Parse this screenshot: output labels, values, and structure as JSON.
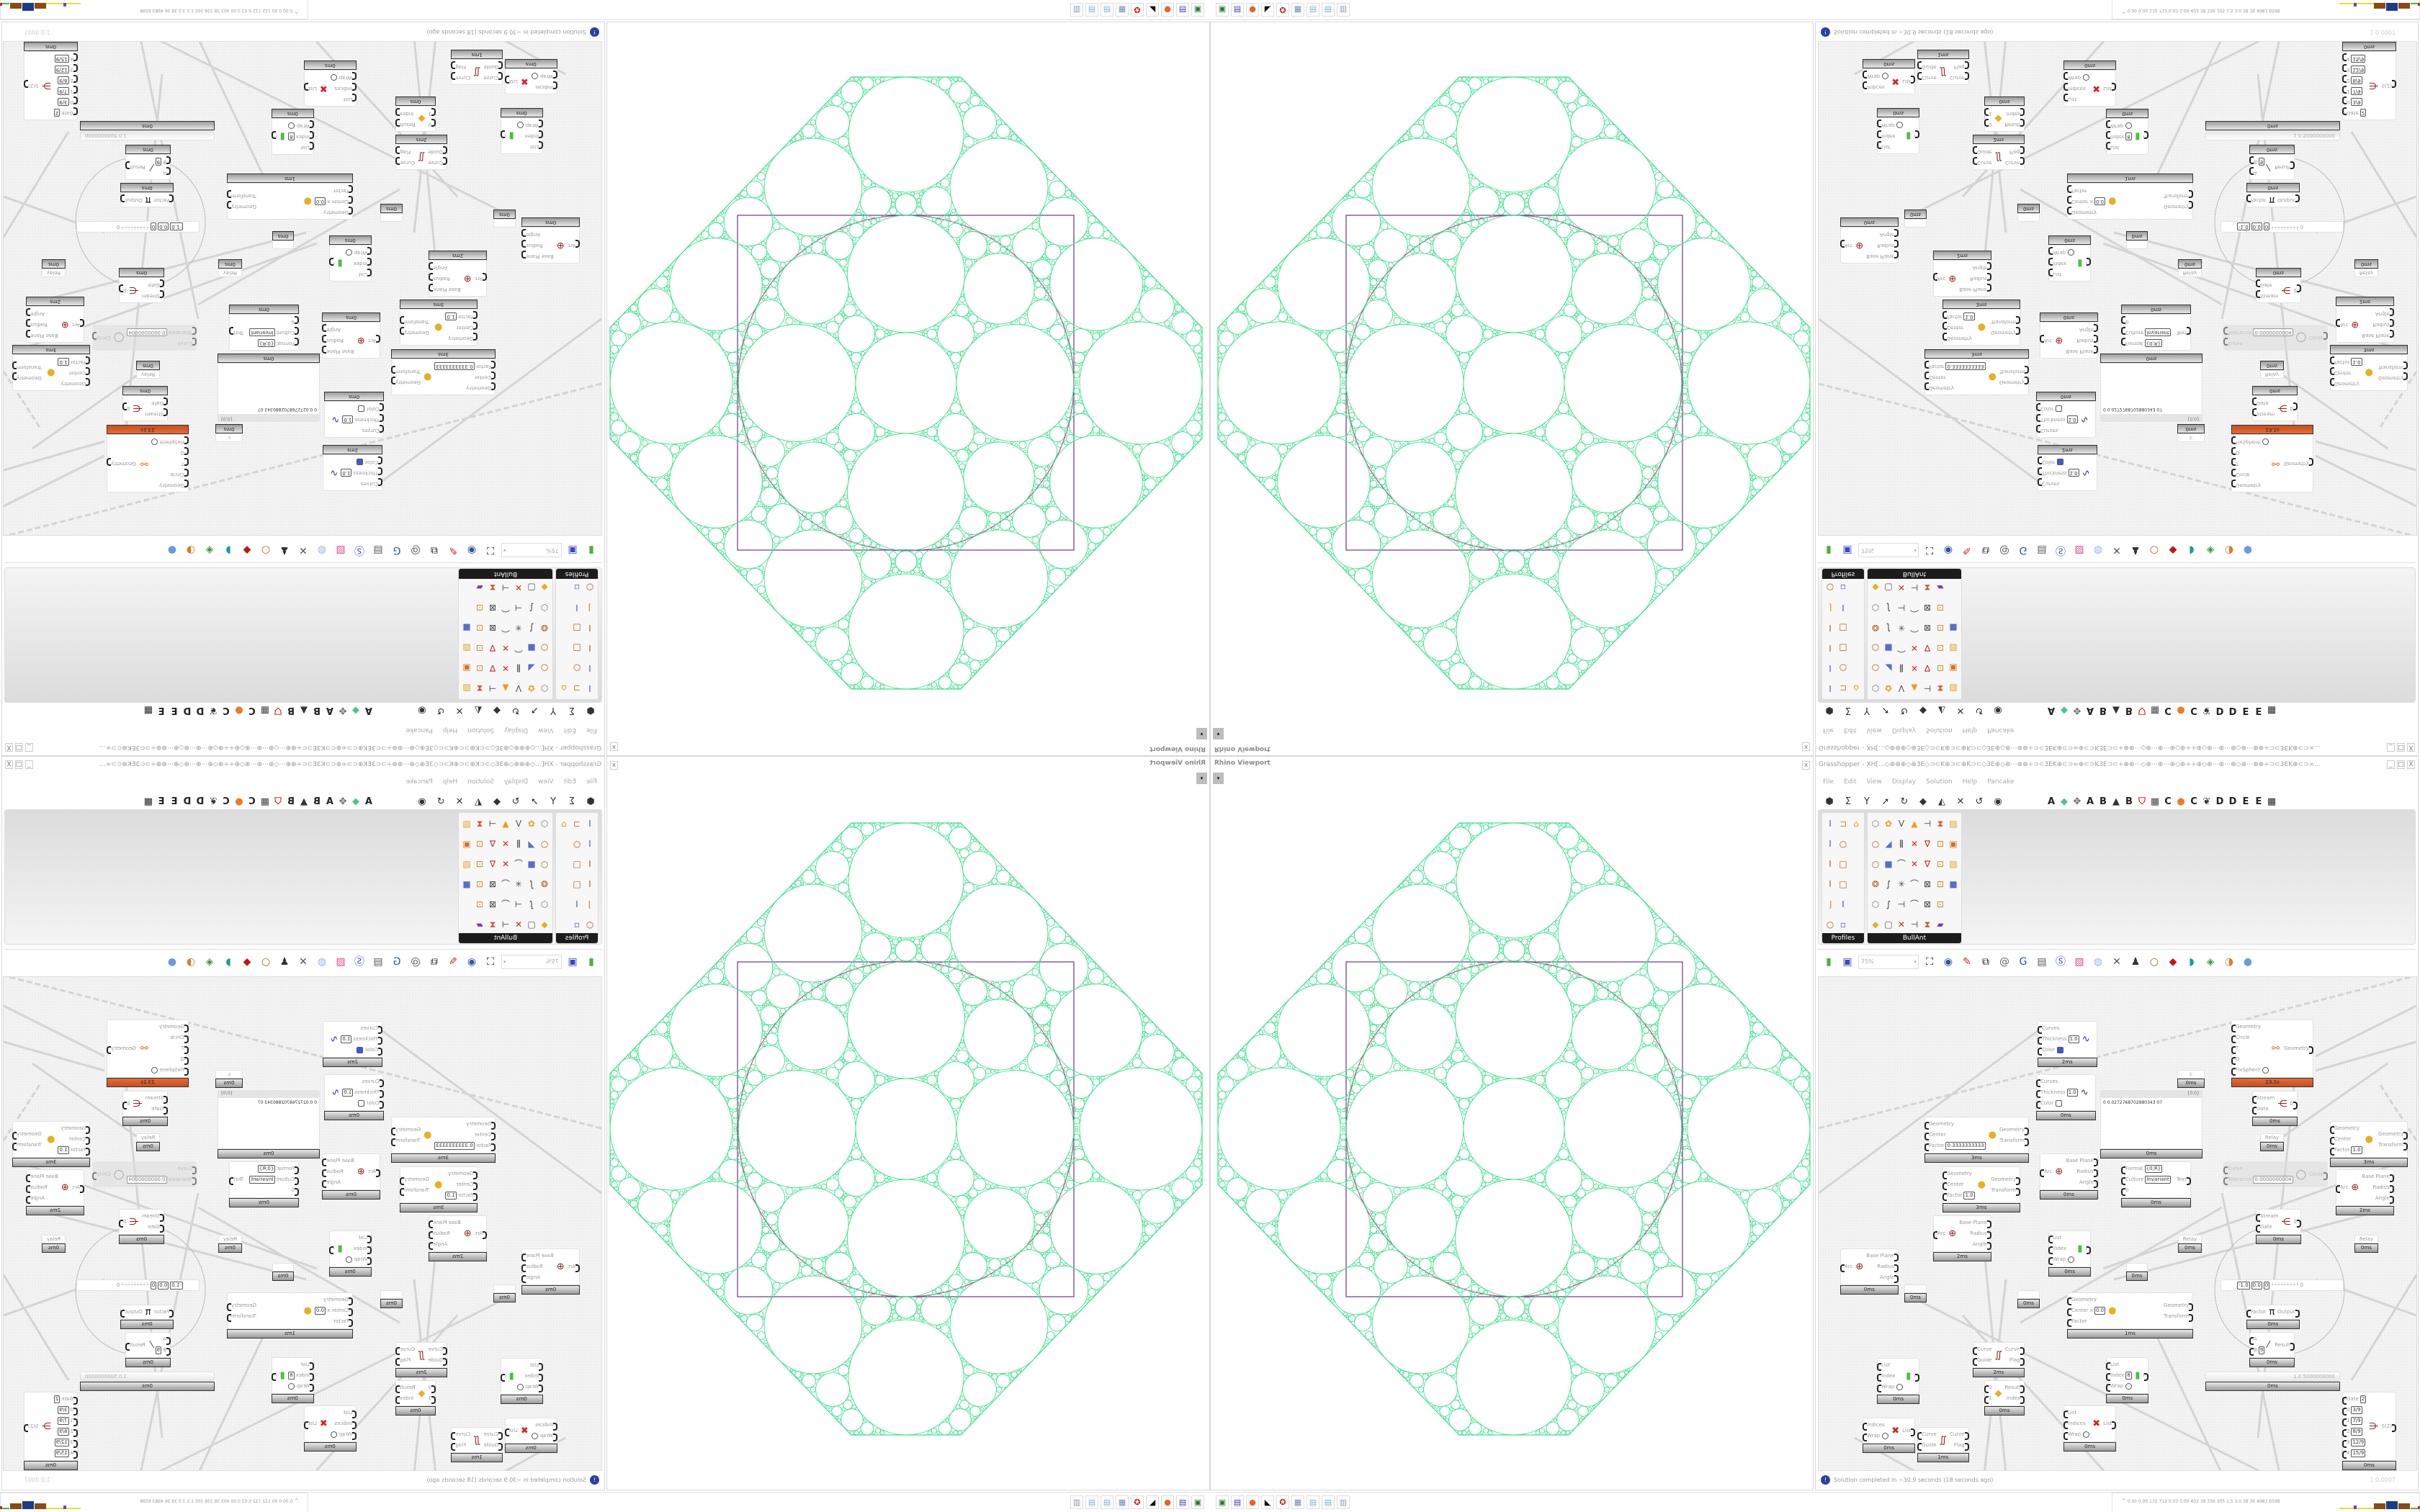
{
  "viewport": {
    "title": "Rhino Viewport",
    "close": "x",
    "dropdown": "▾",
    "colors": {
      "circles": "#3ce38c",
      "frame": "#6b3a78",
      "accent": "#d63a8f"
    }
  },
  "grasshopper": {
    "title": "Grasshopper - XH[…◇⊕⊕⊕◇⊕3E◇⊃⊂K⊕⊃⊂⊕K⊃⊂◇3E⊕◇⊕⋯⊕⊕÷⊃⊂3EK⊕⊂⊃∞⊕⊂⊃K3E⊃⊂÷⊕⊕⋯◇⊕⋯⊕⋯⊕◇⊕÷÷⊕◇⊕⋯⊕⋯⊕◇⊕⋯⊕⊕÷⊃⊂3EK⊕⊂⊃∞…",
    "window_buttons": [
      "_",
      "□",
      "X"
    ],
    "menu": [
      "File",
      "Edit",
      "View",
      "Display",
      "Solution",
      "Help",
      "Pancake"
    ],
    "tab_icons": [
      "params-hexagon-icon",
      "maths-sigma-icon",
      "sets-y-icon",
      "vector-arrow-icon",
      "curve-hook-icon",
      "surface-icon",
      "mesh-icon",
      "intersect-icon",
      "transform-icon",
      "display-eye-icon"
    ],
    "tab_letters": [
      {
        "label": "A"
      },
      {
        "icon": "green-gem-icon"
      },
      {
        "icon": "puzzle-icon"
      },
      {
        "label": "A"
      },
      {
        "label": "B"
      },
      {
        "icon": "mountain-icon"
      },
      {
        "label": "B"
      },
      {
        "icon": "shield-icon"
      },
      {
        "icon": "grid-icon"
      },
      {
        "label": "C"
      },
      {
        "icon": "orange-dot-icon"
      },
      {
        "label": "C"
      },
      {
        "icon": "bird-icon"
      },
      {
        "label": "D"
      },
      {
        "label": "D"
      },
      {
        "label": "E"
      },
      {
        "label": "E"
      },
      {
        "icon": "overflow-grid-icon"
      }
    ],
    "palette": [
      {
        "label": "Profiles",
        "columns": 3,
        "icons": [
          "ibeam-icon",
          "c-channel-icon",
          "hat-profile-icon",
          "ibeam-icon",
          "tube-icon",
          "",
          "i-section-icon",
          "rect-tube-icon",
          "",
          "i-section-icon",
          "rect-tube-icon",
          "",
          "angle-icon",
          "ibeam-icon",
          "",
          "ring-icon",
          "params-icon",
          ""
        ]
      },
      {
        "label": "BullAnt",
        "columns": 7,
        "icons": [
          "box-icon",
          "flower-icon",
          "v-split-icon",
          "cone-icon",
          "bracket-icon",
          "warp-icon",
          "graph-icon",
          "ring-icon",
          "plane-icon",
          "bars-icon",
          "red-net-icon",
          "v-node-icon",
          "lock-icon",
          "box-orange-icon",
          "ring-icon",
          "cube-icon",
          "bend-icon",
          "red-net-icon",
          "v-node-icon",
          "lock-icon",
          "graph-icon",
          "ball-icon",
          "curve-icon",
          "star-icon",
          "bend-icon",
          "frame-icon",
          "lock-icon",
          "cube-icon",
          "box-icon",
          "curve-icon",
          "bracket-icon",
          "bend-icon",
          "frame-icon",
          "lock-icon",
          "",
          "gem-icon",
          "frame-box-icon",
          "red-net-icon",
          "bracket-icon",
          "warp-icon",
          "rainbow-icon",
          ""
        ]
      }
    ],
    "toolbar": {
      "zoom": "75%",
      "icons": [
        "new-file-icon",
        "save-icon",
        "zoom-extents-icon",
        "eye-icon",
        "sketch-icon",
        "cable-icon",
        "at-icon",
        "gha-icon",
        "canvas-image-icon",
        "search-icon",
        "package-icon",
        "bulb-icon",
        "cross-icon",
        "bellows-icon",
        "ring-icon",
        "red-cube-icon",
        "teal-shape-icon",
        "green-shape-icon",
        "orange-sphere-icon",
        "blue-sphere-icon"
      ]
    },
    "canvas": {
      "nodes": [
        {
          "type": "component",
          "icon": "curve-preview-icon",
          "inputs": [
            {
              "label": "Curves"
            },
            {
              "label": "Thickness",
              "value": "1.0"
            },
            {
              "label": "Color",
              "swatch": "#3b5bdb"
            }
          ],
          "outputs": [],
          "time": "2ms"
        },
        {
          "type": "component",
          "icon": "curve-preview-icon",
          "inputs": [
            {
              "label": "Curves"
            },
            {
              "label": "Thickness",
              "value": "1.0"
            },
            {
              "label": "Color",
              "swatch": "#ffffff"
            }
          ],
          "outputs": [],
          "time": "0ms"
        },
        {
          "type": "component",
          "icon": "scale-icon",
          "inputs": [
            {
              "label": "Geometry"
            },
            {
              "label": "Center"
            },
            {
              "label": "Factor",
              "value": "0.3333333333"
            }
          ],
          "outputs": [
            {
              "label": "Geometry"
            },
            {
              "label": "Transform"
            }
          ],
          "time": "3ms"
        },
        {
          "type": "component",
          "icon": "scale-icon",
          "inputs": [
            {
              "label": "Geometry"
            },
            {
              "label": "Center"
            },
            {
              "label": "Factor",
              "value": "1.0"
            }
          ],
          "outputs": [
            {
              "label": "Geometry"
            },
            {
              "label": "Transform"
            }
          ],
          "time": "3ms"
        },
        {
          "type": "component",
          "icon": "arc-icon",
          "inputs": [
            {
              "label": "Arc"
            }
          ],
          "outputs": [
            {
              "label": "Base Plane"
            },
            {
              "label": "Radius"
            },
            {
              "label": "Angle"
            }
          ],
          "time": "0ms"
        },
        {
          "type": "panel",
          "header": "{0;0}",
          "text": "0 0.0272768702880343 07",
          "time": "0ms"
        },
        {
          "type": "component",
          "icon": "kangaroo-icon",
          "inputs": [
            {
              "label": "Geometry"
            },
            {
              "label": "Circle"
            },
            {
              "label": "T"
            },
            {
              "label": "Q"
            },
            {
              "label": "FixSphere",
              "toggle": true
            }
          ],
          "outputs": [
            {
              "label": "Geometry"
            }
          ],
          "time": "23.1s",
          "warn": true
        },
        {
          "type": "param",
          "label": "c",
          "time": "0ms"
        },
        {
          "type": "component",
          "icon": "stream-gate-icon",
          "inputs": [
            {
              "label": "Stream"
            },
            {
              "label": "Gate"
            }
          ],
          "outputs": [
            {
              "label": "0"
            }
          ],
          "time": "0ms"
        },
        {
          "type": "param",
          "label": "Relay",
          "time": "0ms"
        },
        {
          "type": "component",
          "icon": "format-icon",
          "inputs": [
            {
              "label": "Format",
              "value": "{0;R}"
            },
            {
              "label": "Culture",
              "value": "Invariant"
            },
            {
              "label": "0"
            }
          ],
          "outputs": [
            {
              "label": "Text"
            }
          ],
          "time": "0ms"
        },
        {
          "type": "component",
          "icon": "circle-fit-icon",
          "inputs": [
            {
              "label": "Curve"
            },
            {
              "label": "Tolerance",
              "value": "0.0000000004"
            }
          ],
          "outputs": [
            {
              "label": "Circle"
            }
          ],
          "disabled": true
        },
        {
          "type": "component",
          "icon": "scale-icon",
          "inputs": [
            {
              "label": "Geometry"
            },
            {
              "label": "Center"
            },
            {
              "label": "Factor",
              "value": "1.0"
            }
          ],
          "outputs": [
            {
              "label": "Geometry"
            },
            {
              "label": "Transform"
            }
          ],
          "time": "3ms"
        },
        {
          "type": "component",
          "icon": "arc-icon",
          "inputs": [
            {
              "label": "Arc"
            }
          ],
          "outputs": [
            {
              "label": "Base Plane"
            },
            {
              "label": "Radius"
            },
            {
              "label": "Angle"
            }
          ],
          "time": "2ms"
        },
        {
          "type": "component",
          "icon": "arc-icon",
          "inputs": [
            {
              "label": "Arc"
            }
          ],
          "outputs": [
            {
              "label": "Base Plane"
            },
            {
              "label": "Radius"
            },
            {
              "label": "Angle"
            }
          ],
          "time": "2ms"
        },
        {
          "type": "component",
          "icon": "arc-icon",
          "inputs": [
            {
              "label": "Arc"
            }
          ],
          "outputs": [
            {
              "label": "Base Plane"
            },
            {
              "label": "Radius"
            },
            {
              "label": "Angle"
            }
          ],
          "time": "0ms"
        },
        {
          "type": "param",
          "label": "",
          "time": "0ms"
        },
        {
          "type": "param",
          "label": "",
          "time": "0ms"
        },
        {
          "type": "component",
          "icon": "list-item-icon",
          "inputs": [
            {
              "label": "List"
            },
            {
              "label": "Index"
            },
            {
              "label": "Wrap",
              "toggle": true
            }
          ],
          "outputs": [
            {
              "label": "i"
            }
          ],
          "time": "0ms"
        },
        {
          "type": "component",
          "icon": "scale-icon",
          "inputs": [
            {
              "label": "Geometry"
            },
            {
              "label": "Center x",
              "value": "0.0"
            },
            {
              "label": "Factor"
            }
          ],
          "outputs": [
            {
              "label": "Geometry"
            },
            {
              "label": "Transform"
            }
          ],
          "time": "1ms"
        },
        {
          "type": "component",
          "icon": "flip-curve-icon",
          "inputs": [
            {
              "label": "Curve"
            },
            {
              "label": "Guide"
            }
          ],
          "outputs": [
            {
              "label": "Curve"
            },
            {
              "label": "Flag"
            }
          ],
          "time": "2ms"
        },
        {
          "type": "component",
          "icon": "list-item-icon",
          "inputs": [
            {
              "label": "List"
            },
            {
              "label": "Index"
            },
            {
              "label": "Wrap",
              "toggle": true
            }
          ],
          "outputs": [
            {
              "label": "i"
            }
          ],
          "time": "0ms"
        },
        {
          "type": "component",
          "icon": "gate-icon",
          "inputs": [
            {
              "label": "0"
            },
            {
              "label": "1"
            }
          ],
          "outputs": [
            {
              "label": "Result"
            },
            {
              "label": "Index"
            }
          ],
          "time": "0ms"
        },
        {
          "type": "component",
          "icon": "list-item-icon",
          "inputs": [
            {
              "label": "List"
            },
            {
              "label": "Index",
              "value": "8"
            },
            {
              "label": "Wrap",
              "toggle": true
            }
          ],
          "outputs": [
            {
              "label": "i"
            }
          ],
          "time": "0ms"
        },
        {
          "type": "component",
          "icon": "cull-index-icon",
          "inputs": [
            {
              "label": "List"
            },
            {
              "label": "Indices"
            },
            {
              "label": "Wrap",
              "toggle": true
            }
          ],
          "outputs": [
            {
              "label": "List"
            }
          ],
          "time": "0ms"
        },
        {
          "type": "component",
          "icon": "stream-gate-icon",
          "inputs": [
            {
              "label": "Stream"
            },
            {
              "label": "Gate"
            }
          ],
          "outputs": [
            {
              "label": "0"
            }
          ],
          "time": "0ms"
        },
        {
          "type": "param",
          "label": "Relay",
          "time": "0ms"
        },
        {
          "type": "param",
          "label": "Relay",
          "time": "0ms"
        },
        {
          "type": "param",
          "label": "",
          "time": "0ms"
        },
        {
          "type": "mdslider",
          "values": [
            "-1.0",
            "0.0",
            "0"
          ],
          "end": "0"
        },
        {
          "type": "component",
          "icon": "pi-icon",
          "inputs": [
            {
              "label": "Factor"
            }
          ],
          "outputs": [
            {
              "label": "Output"
            }
          ],
          "time": "0ms"
        },
        {
          "type": "component",
          "icon": "division-icon",
          "inputs": [
            {
              "label": "A"
            },
            {
              "label": "B",
              "value": "9"
            }
          ],
          "outputs": [
            {
              "label": "Result"
            }
          ],
          "time": "0ms"
        },
        {
          "type": "slider",
          "value": "1.0 5000000000",
          "time": "0ms"
        },
        {
          "type": "component",
          "icon": "stream-filter-icon",
          "inputs": [
            {
              "label": "Gate",
              "value": "2"
            },
            {
              "label": "0",
              "value": "3/9"
            },
            {
              "label": "1",
              "value": "7/9"
            },
            {
              "label": "2",
              "value": "8/9"
            },
            {
              "label": "3",
              "value": "12/9"
            },
            {
              "label": "4",
              "value": "15/9"
            }
          ],
          "outputs": [
            {
              "label": "S(2)"
            }
          ],
          "time": "0ms"
        },
        {
          "type": "component",
          "icon": "flip-curve-icon",
          "inputs": [
            {
              "label": "Curve"
            },
            {
              "label": "Guide"
            }
          ],
          "outputs": [
            {
              "label": "Curve"
            },
            {
              "label": "Flag"
            }
          ],
          "time": "1ms"
        },
        {
          "type": "component",
          "icon": "cull-index-icon",
          "inputs": [
            {
              "label": "Indices"
            },
            {
              "label": "Wrap",
              "toggle": true
            }
          ],
          "outputs": [
            {
              "label": "List"
            }
          ],
          "time": "0ms"
        }
      ]
    },
    "status": {
      "message": "Solution completed in ~30.9 seconds (18 seconds ago)",
      "version": "1.0.0007",
      "icon": "info-icon"
    }
  },
  "taskbar": {
    "apps": [
      "terminal-icon",
      "floppy-64-icon",
      "firefox-icon",
      "inkscape-icon",
      "red-app-icon",
      "calculator-icon",
      "notepad-icon",
      "notepad-icon",
      "document-icon"
    ],
    "perf": "0.00 0.00 132 712 0.03 0.00 403 38 336 305 1.5 3.0 38 36 4983 6598"
  }
}
